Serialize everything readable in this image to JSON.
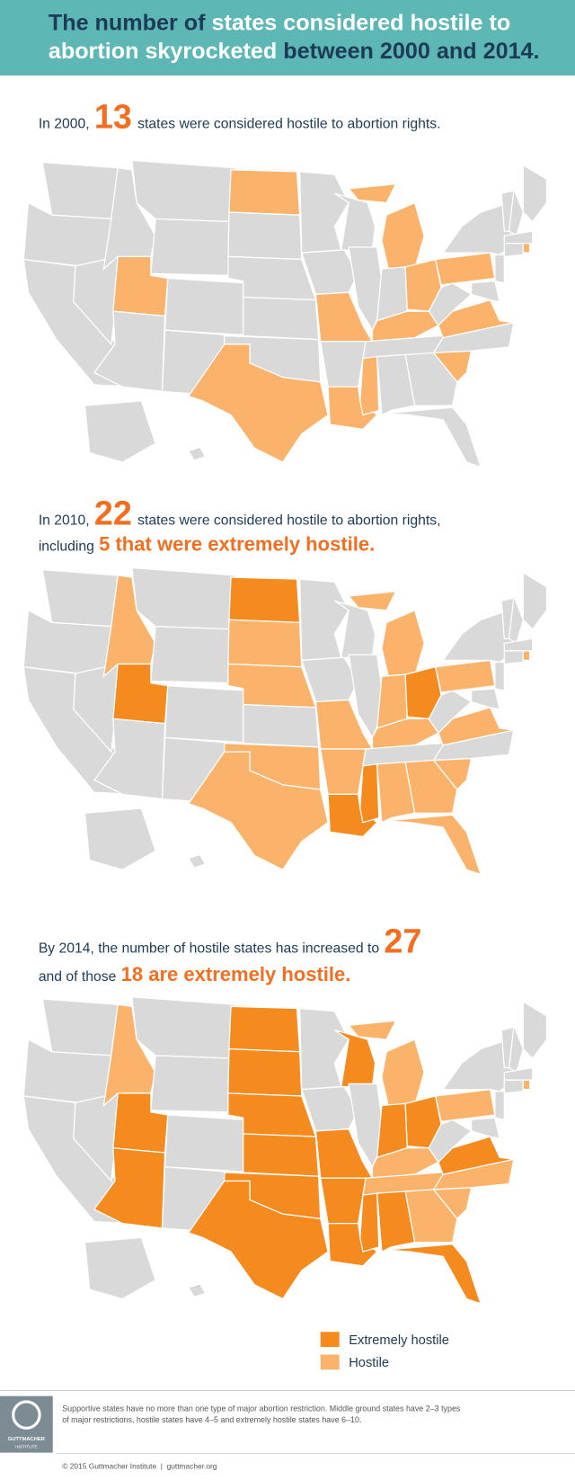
{
  "header": {
    "title_lines": [
      [
        {
          "text": "The number of ",
          "color": "#1d3a57"
        },
        {
          "text": "states considered hostile to",
          "color": "#ffffff"
        }
      ],
      [
        {
          "text": "abortion skyrocketed",
          "color": "#ffffff"
        },
        {
          "text": " between 2000 and 2014.",
          "color": "#1d3a57"
        }
      ]
    ]
  },
  "sections": [
    {
      "lead": "In 2000,",
      "count": 13,
      "text": "states were considered hostile to abortion rights."
    },
    {
      "lead": "In 2010,",
      "count": 22,
      "text": "states were considered hostile to abortion rights,",
      "line2_prefix": "including",
      "extreme": "5 that were extremely hostile."
    },
    {
      "lead": "By 2014, the number of hostile states has increased to",
      "count": 27,
      "line2_prefix": "and of those",
      "extreme": "18 are extremely hostile."
    }
  ],
  "legend": [
    {
      "label": "Extremely hostile",
      "color": "#f58a1f"
    },
    {
      "label": "Hostile",
      "color": "#fbb36c"
    }
  ],
  "footnote": [
    "Supportive states have no more than one type of major abortion restriction. Middle ground states have 2–3 types",
    "of major restrictions, hostile states have 4–5 and extremely hostile states have 6–10."
  ],
  "logo": {
    "name": "GUTTMACHER",
    "sub": "INSTITUTE"
  },
  "footer": "© 2015 Guttmacher Institute  |  guttmacher.org"
}
